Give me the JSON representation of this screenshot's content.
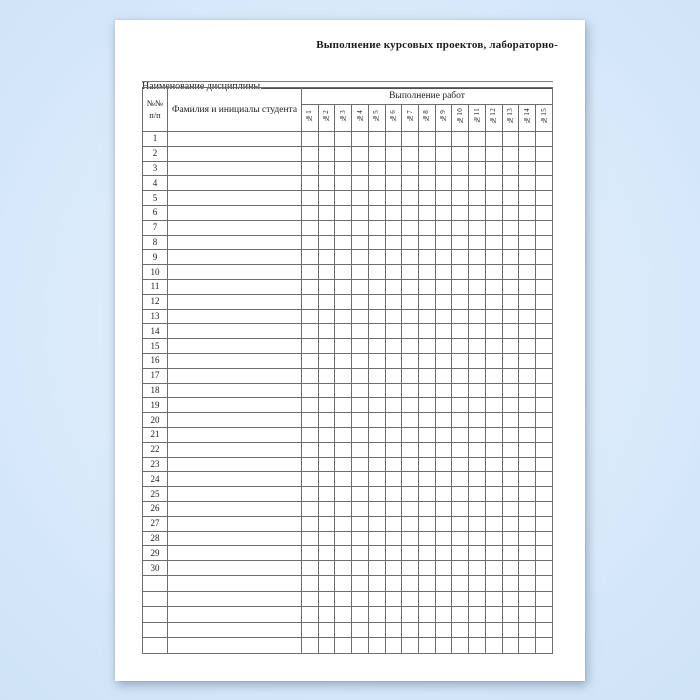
{
  "page": {
    "title": "Выполнение курсовых проектов, лабораторно-",
    "discipline_label": "Наименование дисциплины",
    "discipline_value": ""
  },
  "table": {
    "number_col_header_line1": "№№",
    "number_col_header_line2": "п/п",
    "name_col_header": "Фамилия и инициалы студента",
    "works_header": "Выполнение работ",
    "work_columns": [
      "№1",
      "№2",
      "№3",
      "№4",
      "№5",
      "№6",
      "№7",
      "№8",
      "№9",
      "№10",
      "№11",
      "№12",
      "№13",
      "№14",
      "№15"
    ],
    "row_numbers": [
      "1",
      "2",
      "3",
      "4",
      "5",
      "6",
      "7",
      "8",
      "9",
      "10",
      "11",
      "12",
      "13",
      "14",
      "15",
      "16",
      "17",
      "18",
      "19",
      "20",
      "21",
      "22",
      "23",
      "24",
      "25",
      "26",
      "27",
      "28",
      "29",
      "30"
    ],
    "unnumbered_bottom_rows": 5,
    "cell_values": []
  },
  "colors": {
    "background_blue": "#d4e7fa",
    "page_white": "#ffffff",
    "grid_line": "#6d6d6d",
    "text": "#1c1c1c"
  }
}
